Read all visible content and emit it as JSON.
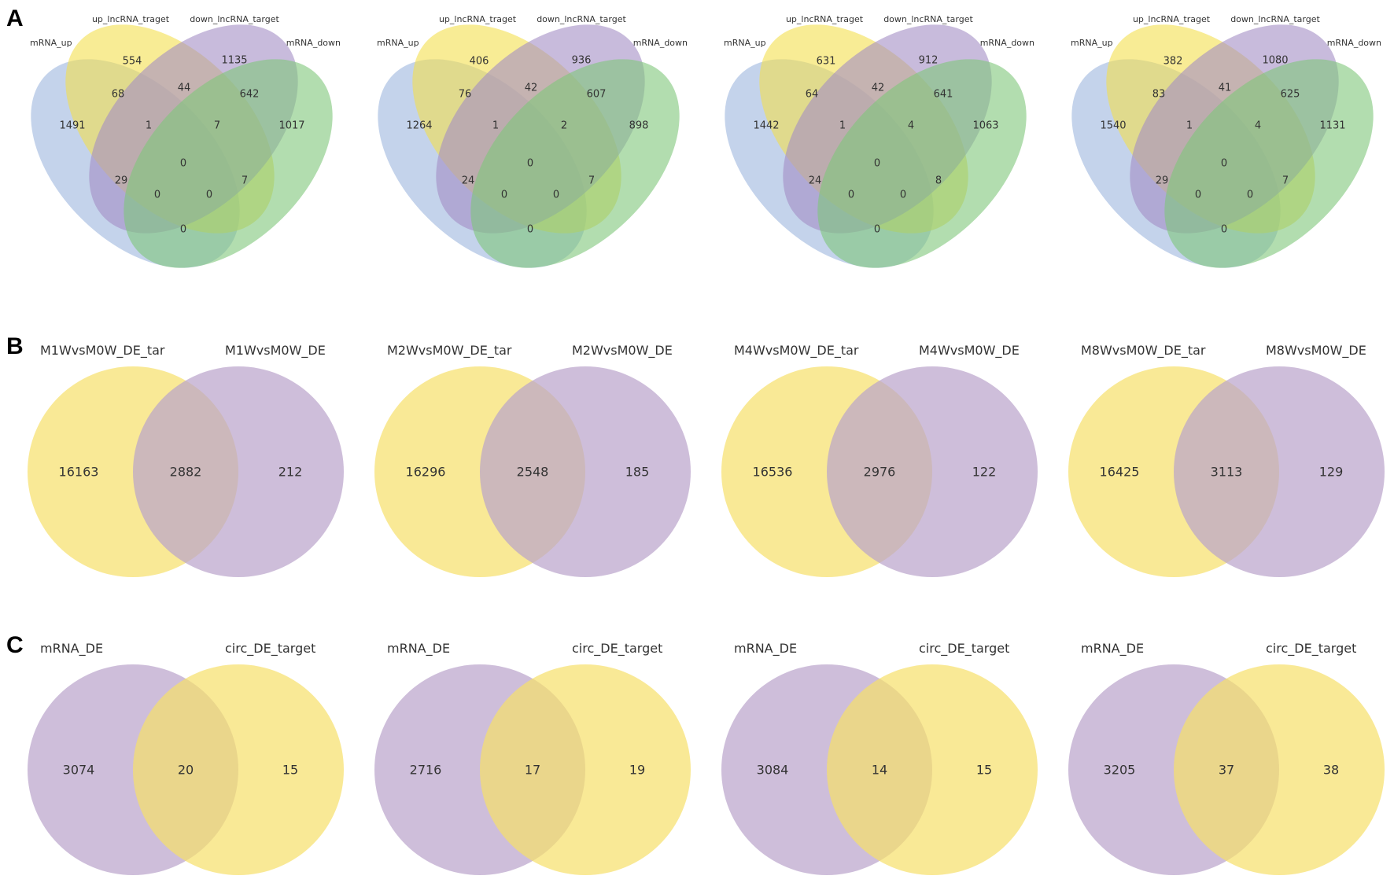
{
  "panels": {
    "A": {
      "letter": "A",
      "colors": [
        "#9db6dd",
        "#f3df4f",
        "#a48ec5",
        "#7ec77a"
      ],
      "diagrams": [
        {
          "sets": [
            "mRNA_up",
            "up_lncRNA_traget",
            "down_lncRNA_target",
            "mRNA_down"
          ],
          "regions": {
            "a": "1491",
            "b": "554",
            "c": "1135",
            "d": "1017",
            "ab": "68",
            "bc": "44",
            "cd": "642",
            "abc": "1",
            "bcd": "7",
            "ac": "29",
            "bd": "7",
            "abcd": "0",
            "acd": "0",
            "abd": "0",
            "ad": "0"
          }
        },
        {
          "sets": [
            "mRNA_up",
            "up_lncRNA_traget",
            "down_lncRNA_target",
            "mRNA_down"
          ],
          "regions": {
            "a": "1264",
            "b": "406",
            "c": "936",
            "d": "898",
            "ab": "76",
            "bc": "42",
            "cd": "607",
            "abc": "1",
            "bcd": "2",
            "ac": "24",
            "bd": "7",
            "abcd": "0",
            "acd": "0",
            "abd": "0",
            "ad": "0"
          }
        },
        {
          "sets": [
            "mRNA_up",
            "up_lncRNA_traget",
            "down_lncRNA_target",
            "mRNA_down"
          ],
          "regions": {
            "a": "1442",
            "b": "631",
            "c": "912",
            "d": "1063",
            "ab": "64",
            "bc": "42",
            "cd": "641",
            "abc": "1",
            "bcd": "4",
            "ac": "24",
            "bd": "8",
            "abcd": "0",
            "acd": "0",
            "abd": "0",
            "ad": "0"
          }
        },
        {
          "sets": [
            "mRNA_up",
            "up_lncRNA_traget",
            "down_lncRNA_target",
            "mRNA_down"
          ],
          "regions": {
            "a": "1540",
            "b": "382",
            "c": "1080",
            "d": "1131",
            "ab": "83",
            "bc": "41",
            "cd": "625",
            "abc": "1",
            "bcd": "4",
            "ac": "29",
            "bd": "7",
            "abcd": "0",
            "acd": "0",
            "abd": "0",
            "ad": "0"
          }
        }
      ]
    },
    "B": {
      "letter": "B",
      "colors": [
        "#f6df6a",
        "#b9a3cb"
      ],
      "diagrams": [
        {
          "sets": [
            "M1WvsM0W_DE_tar",
            "M1WvsM0W_DE"
          ],
          "left_only": "16163",
          "overlap": "2882",
          "right_only": "212"
        },
        {
          "sets": [
            "M2WvsM0W_DE_tar",
            "M2WvsM0W_DE"
          ],
          "left_only": "16296",
          "overlap": "2548",
          "right_only": "185"
        },
        {
          "sets": [
            "M4WvsM0W_DE_tar",
            "M4WvsM0W_DE"
          ],
          "left_only": "16536",
          "overlap": "2976",
          "right_only": "122"
        },
        {
          "sets": [
            "M8WvsM0W_DE_tar",
            "M8WvsM0W_DE"
          ],
          "left_only": "16425",
          "overlap": "3113",
          "right_only": "129"
        }
      ]
    },
    "C": {
      "letter": "C",
      "colors": [
        "#b9a3cb",
        "#f6df6a"
      ],
      "diagrams": [
        {
          "sets": [
            "mRNA_DE",
            "circ_DE_target"
          ],
          "left_only": "3074",
          "overlap": "20",
          "right_only": "15"
        },
        {
          "sets": [
            "mRNA_DE",
            "circ_DE_target"
          ],
          "left_only": "2716",
          "overlap": "17",
          "right_only": "19"
        },
        {
          "sets": [
            "mRNA_DE",
            "circ_DE_target"
          ],
          "left_only": "3084",
          "overlap": "14",
          "right_only": "15"
        },
        {
          "sets": [
            "mRNA_DE",
            "circ_DE_target"
          ],
          "left_only": "3205",
          "overlap": "37",
          "right_only": "38"
        }
      ]
    }
  }
}
